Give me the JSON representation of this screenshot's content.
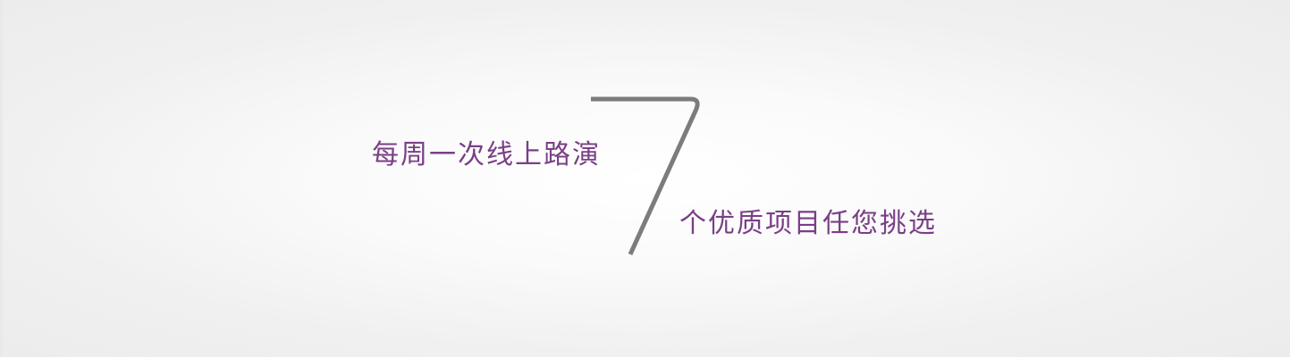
{
  "banner": {
    "tagline_top": "每周一次线上路演",
    "number": "7",
    "tagline_bottom": "个优质项目任您挑选"
  },
  "colors": {
    "accent": "#7a3f86",
    "number": "#7c7c7c",
    "background": "#f3f3f3"
  }
}
